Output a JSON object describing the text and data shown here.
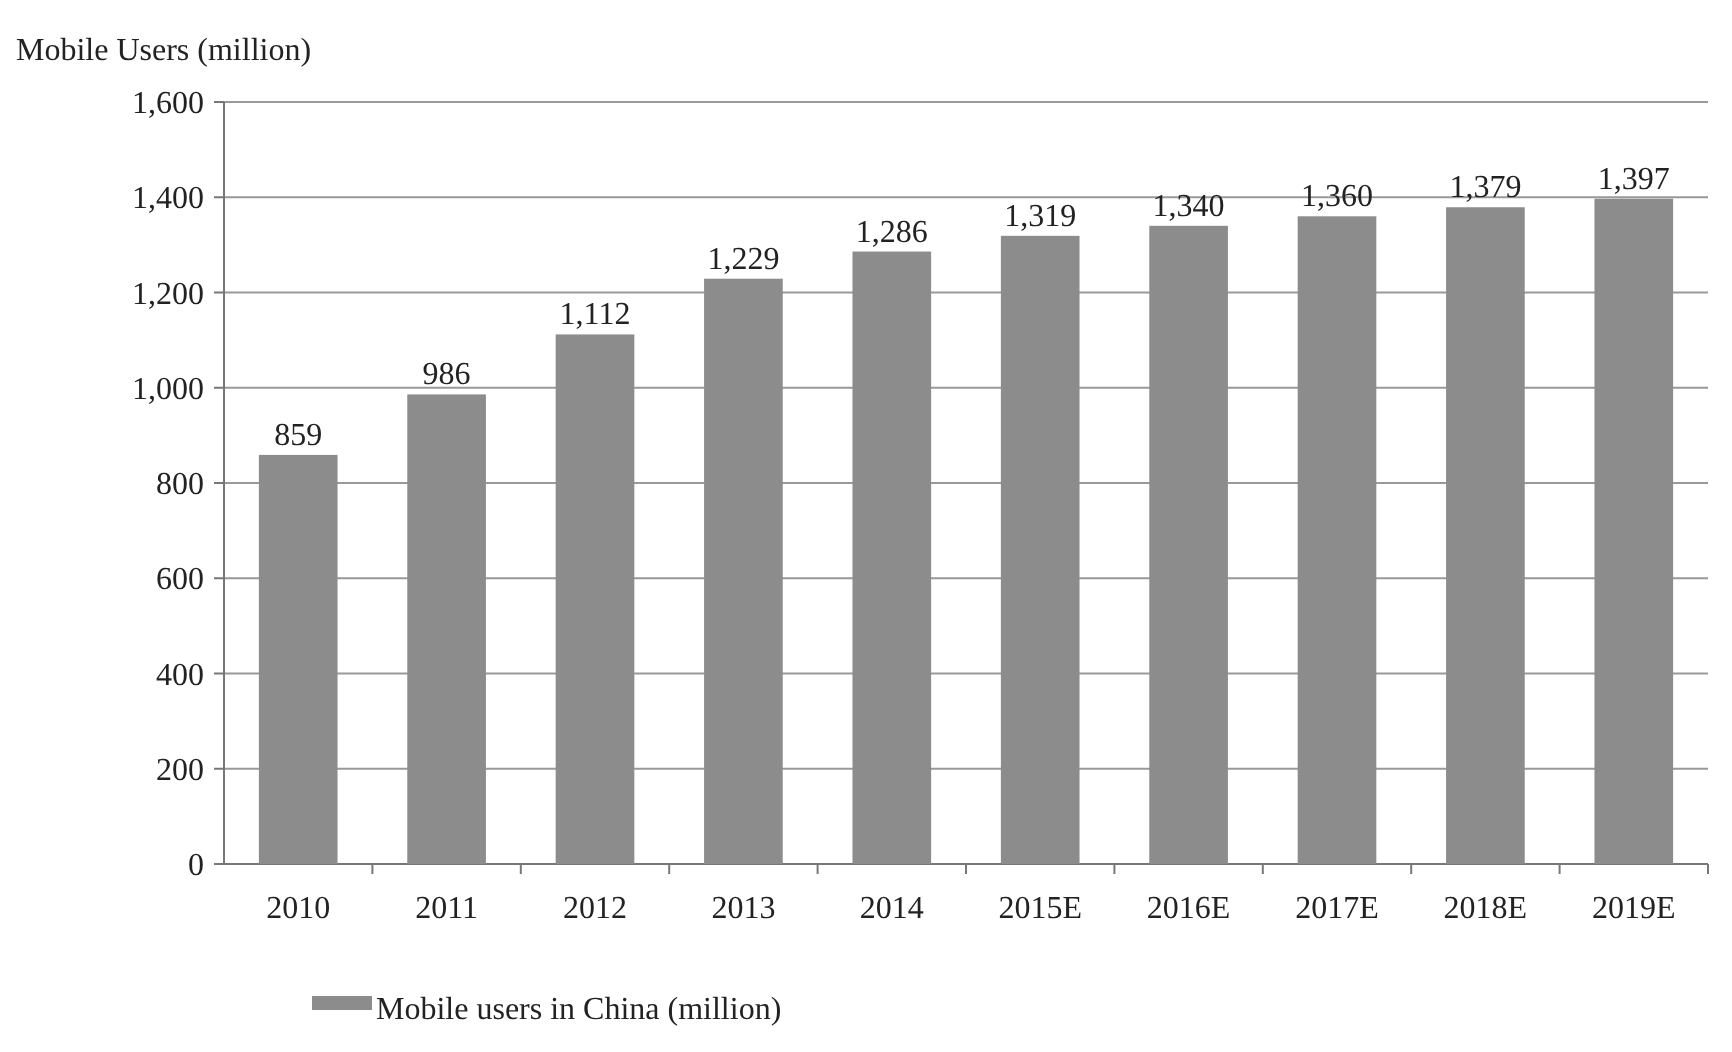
{
  "chart_data": {
    "type": "bar",
    "ylabel": "Mobile Users (million)",
    "categories": [
      "2010",
      "2011",
      "2012",
      "2013",
      "2014",
      "2015E",
      "2016E",
      "2017E",
      "2018E",
      "2019E"
    ],
    "series": [
      {
        "name": "Mobile users in China (million)",
        "color": "#8c8c8c",
        "values": [
          859,
          986,
          1112,
          1229,
          1286,
          1319,
          1340,
          1360,
          1379,
          1397
        ],
        "value_labels": [
          "859",
          "986",
          "1,112",
          "1,229",
          "1,286",
          "1,319",
          "1,340",
          "1,360",
          "1,379",
          "1,397"
        ]
      }
    ],
    "ylim": [
      0,
      1600
    ],
    "yticks": [
      {
        "value": 0,
        "label": "0"
      },
      {
        "value": 200,
        "label": "200"
      },
      {
        "value": 400,
        "label": "400"
      },
      {
        "value": 600,
        "label": "600"
      },
      {
        "value": 800,
        "label": "800"
      },
      {
        "value": 1000,
        "label": "1,000"
      },
      {
        "value": 1200,
        "label": "1,200"
      },
      {
        "value": 1400,
        "label": "1,400"
      },
      {
        "value": 1600,
        "label": "1,600"
      }
    ],
    "grid": "y",
    "legend": "bottom"
  }
}
